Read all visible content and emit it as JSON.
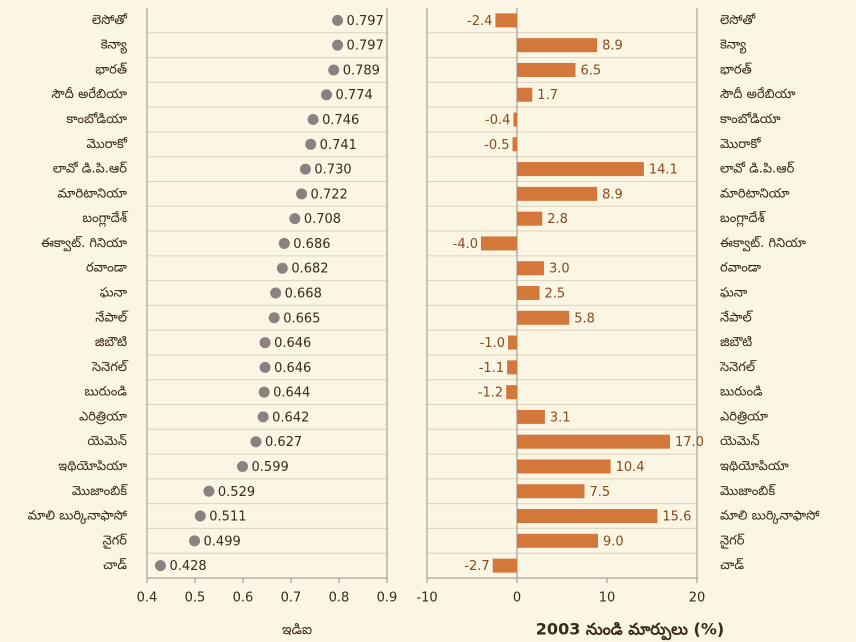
{
  "chart_data": [
    {
      "type": "dot",
      "xlabel": "ఇడిఐ",
      "categories": [
        "లెసోతో",
        "కెన్యా",
        "భారత్",
        "సౌదీ అరేబియా",
        "కాంబోడియా",
        "మొరాకో",
        "లావో డి.పి.ఆర్",
        "మారిటానియా",
        "బంగ్లాదేశ్",
        "ఈక్వాట్. గినియా",
        "రవాండా",
        "ఘనా",
        "నేపాల్",
        "జిబౌటి",
        "సెనెగల్",
        "బురుండి",
        "ఎరిత్రియా",
        "యెమెన్",
        "ఇథియోపియా",
        "మొజాంబిక్",
        "మాలి బుర్కినాఫాసో",
        "నైగర్",
        "చాడ్"
      ],
      "values": [
        0.797,
        0.797,
        0.789,
        0.774,
        0.746,
        0.741,
        0.73,
        0.722,
        0.708,
        0.686,
        0.682,
        0.668,
        0.665,
        0.646,
        0.646,
        0.644,
        0.642,
        0.627,
        0.599,
        0.529,
        0.511,
        0.499,
        0.428
      ],
      "value_labels": [
        "0.797",
        "0.797",
        "0.789",
        "0.774",
        "0.746",
        "0.741",
        "0.730",
        "0.722",
        "0.708",
        "0.686",
        "0.682",
        "0.668",
        "0.665",
        "0.646",
        "0.646",
        "0.644",
        "0.642",
        "0.627",
        "0.599",
        "0.529",
        "0.511",
        "0.499",
        "0.428"
      ],
      "color": "#8e8080",
      "xlim": [
        0.4,
        0.9
      ],
      "xticks": [
        0.4,
        0.5,
        0.6,
        0.7,
        0.8,
        0.9
      ]
    },
    {
      "type": "bar",
      "xlabel": "2003 నుండి మార్పులు (%)",
      "categories": [
        "లెసోతో",
        "కెన్యా",
        "భారత్",
        "సౌదీ అరేబియా",
        "కాంబోడియా",
        "మొరాకో",
        "లావో డి.పి.ఆర్",
        "మారిటానియా",
        "బంగ్లాదేశ్",
        "ఈక్వాట్. గినియా",
        "రవాండా",
        "ఘనా",
        "నేపాల్",
        "జిబౌటి",
        "సెనెగల్",
        "బురుండి",
        "ఎరిత్రియా",
        "యెమెన్",
        "ఇథియోపియా",
        "మొజాంబిక్",
        "మాలి బుర్కినాఫాసో",
        "నైగర్",
        "చాడ్"
      ],
      "values": [
        -2.4,
        8.9,
        6.5,
        1.7,
        -0.4,
        -0.5,
        14.1,
        8.9,
        2.8,
        -4.0,
        3.0,
        2.5,
        5.8,
        -1.0,
        -1.1,
        -1.2,
        3.1,
        17.0,
        10.4,
        7.5,
        15.6,
        9.0,
        -2.7
      ],
      "value_labels": [
        "-2.4",
        "8.9",
        "6.5",
        "1.7",
        "-0.4",
        "-0.5",
        "14.1",
        "8.9",
        "2.8",
        "-4.0",
        "3.0",
        "2.5",
        "5.8",
        "-1.0",
        "-1.1",
        "-1.2",
        "3.1",
        "17.0",
        "10.4",
        "7.5",
        "15.6",
        "9.0",
        "-2.7"
      ],
      "color": "#d4773a",
      "xlim": [
        -10,
        20
      ],
      "xticks": [
        -10,
        0,
        10,
        20
      ]
    }
  ]
}
